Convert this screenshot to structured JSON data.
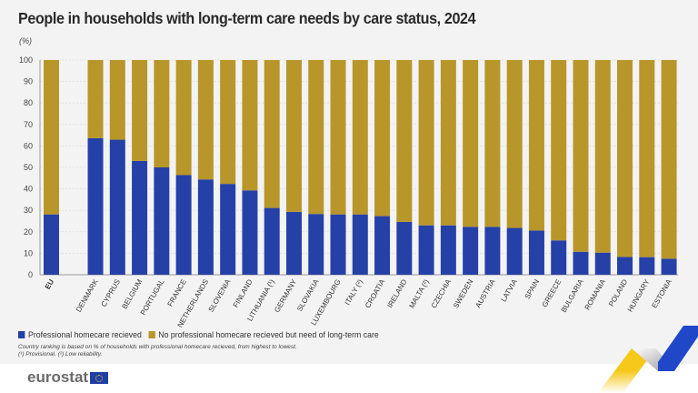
{
  "title": "People in households with long-term care needs by care status, 2024",
  "unit": "(%)",
  "chart_data": {
    "type": "bar",
    "stacked": true,
    "title": "People in households with long-term care needs by care status, 2024",
    "ylabel": "(%)",
    "ylim": [
      0,
      100
    ],
    "yticks": [
      0,
      10,
      20,
      30,
      40,
      50,
      60,
      70,
      80,
      90,
      100
    ],
    "grid": true,
    "legend_position": "bottom-left",
    "categories": [
      "EU",
      "DENMARK",
      "CYPRUS",
      "BELGIUM",
      "PORTUGAL",
      "FRANCE",
      "NETHERLANDS",
      "SLOVENIA",
      "FINLAND",
      "LITHUANIA (¹)",
      "GERMANY",
      "SLOVAKIA",
      "LUXEMBOURG",
      "ITALY (²)",
      "CROATIA",
      "IRELAND",
      "MALTA (²)",
      "CZECHIA",
      "SWEDEN",
      "AUSTRIA",
      "LATVIA",
      "SPAIN",
      "GREECE",
      "BULGARIA",
      "ROMANIA",
      "POLAND",
      "HUNGARY",
      "ESTONIA"
    ],
    "series": [
      {
        "name": "Professional homecare recieved",
        "color": "#2541a8",
        "values": [
          28.1,
          63.6,
          62.9,
          53.0,
          50.0,
          46.4,
          44.4,
          42.3,
          39.3,
          31.1,
          29.3,
          28.3,
          28.1,
          28.1,
          27.3,
          24.6,
          23.0,
          23.0,
          22.3,
          22.3,
          21.8,
          20.6,
          16.0,
          10.7,
          10.3,
          8.3,
          8.2,
          7.5
        ]
      },
      {
        "name": "No professional homecare recieved but need of long-term care",
        "color": "#b8962a",
        "values": [
          71.9,
          36.4,
          37.1,
          47.0,
          50.0,
          53.6,
          55.6,
          57.7,
          60.7,
          68.9,
          70.7,
          71.7,
          71.9,
          71.9,
          72.7,
          75.4,
          77.0,
          77.0,
          77.7,
          77.7,
          78.2,
          79.4,
          84.0,
          89.3,
          89.7,
          91.7,
          91.8,
          92.5
        ]
      }
    ]
  },
  "notes": {
    "ranking": "Country ranking is based on % of households with professional homecare recieved, from highest to lowest.",
    "flags": "(¹) Provisional. (²) Low reliability."
  },
  "logo": "eurostat"
}
